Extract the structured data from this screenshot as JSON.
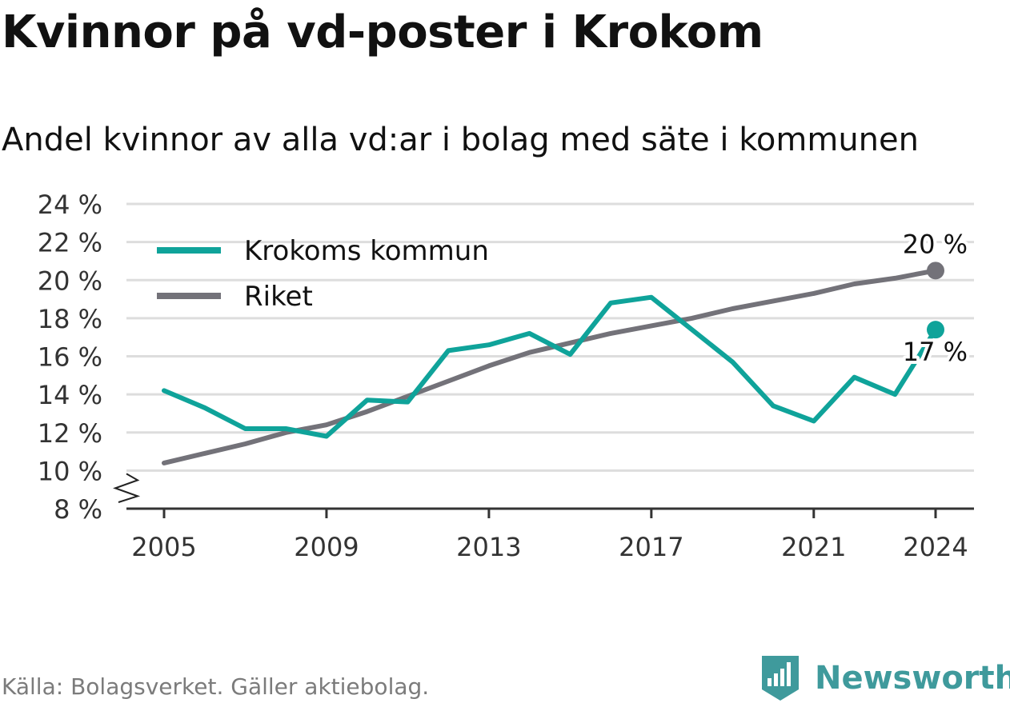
{
  "title": "Kvinnor på vd-poster i Krokom",
  "subtitle": "Andel kvinnor av alla vd:ar i bolag med säte i kommunen",
  "source": "Källa: Bolagsverket. Gäller aktiebolag.",
  "brand": {
    "name": "Newsworthy",
    "color": "#3f9a9c"
  },
  "chart_data": {
    "type": "line",
    "x": [
      2005,
      2006,
      2007,
      2008,
      2009,
      2010,
      2011,
      2012,
      2013,
      2014,
      2015,
      2016,
      2017,
      2018,
      2019,
      2020,
      2021,
      2022,
      2023,
      2024
    ],
    "xticks": [
      "2005",
      "2009",
      "2013",
      "2017",
      "2021",
      "2024"
    ],
    "yticks": [
      "8 %",
      "10 %",
      "12 %",
      "14 %",
      "16 %",
      "18 %",
      "20 %",
      "22 %",
      "24 %"
    ],
    "ylim": [
      8,
      24
    ],
    "axis_break": true,
    "grid": true,
    "legend_position": "top-left",
    "series": [
      {
        "name": "Krokoms kommun",
        "color": "#0fa39a",
        "values": [
          14.2,
          13.3,
          12.2,
          12.2,
          11.8,
          13.7,
          13.6,
          16.3,
          16.6,
          17.2,
          16.1,
          18.8,
          19.1,
          17.4,
          15.7,
          13.4,
          12.6,
          14.9,
          14.0,
          17.4
        ],
        "end_label": "17 %"
      },
      {
        "name": "Riket",
        "color": "#737279",
        "values": [
          10.4,
          10.9,
          11.4,
          12.0,
          12.4,
          13.1,
          13.9,
          14.7,
          15.5,
          16.2,
          16.7,
          17.2,
          17.6,
          18.0,
          18.5,
          18.9,
          19.3,
          19.8,
          20.1,
          20.5
        ],
        "end_label": "20 %"
      }
    ]
  }
}
